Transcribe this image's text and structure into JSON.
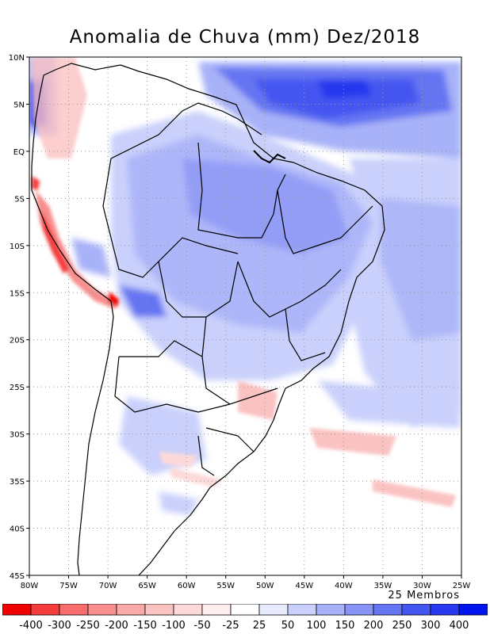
{
  "title": "Anomalia de Chuva (mm) Dez/2018",
  "members_note": "25 Membros",
  "map": {
    "lon_min": -80,
    "lon_max": -25,
    "lat_min": -45,
    "lat_max": 10,
    "lat_ticks": [
      {
        "value": 10,
        "label": "10N"
      },
      {
        "value": 5,
        "label": "5N"
      },
      {
        "value": 0,
        "label": "EQ"
      },
      {
        "value": -5,
        "label": "5S"
      },
      {
        "value": -10,
        "label": "10S"
      },
      {
        "value": -15,
        "label": "15S"
      },
      {
        "value": -20,
        "label": "20S"
      },
      {
        "value": -25,
        "label": "25S"
      },
      {
        "value": -30,
        "label": "30S"
      },
      {
        "value": -35,
        "label": "35S"
      },
      {
        "value": -40,
        "label": "40S"
      },
      {
        "value": -45,
        "label": "45S"
      }
    ],
    "lon_ticks": [
      {
        "value": -80,
        "label": "80W"
      },
      {
        "value": -75,
        "label": "75W"
      },
      {
        "value": -70,
        "label": "70W"
      },
      {
        "value": -65,
        "label": "65W"
      },
      {
        "value": -60,
        "label": "60W"
      },
      {
        "value": -55,
        "label": "55W"
      },
      {
        "value": -50,
        "label": "50W"
      },
      {
        "value": -45,
        "label": "45W"
      },
      {
        "value": -40,
        "label": "40W"
      },
      {
        "value": -35,
        "label": "35W"
      },
      {
        "value": -30,
        "label": "30W"
      },
      {
        "value": -25,
        "label": "25W"
      }
    ]
  },
  "colorbar": {
    "labels": [
      "-400",
      "-300",
      "-250",
      "-200",
      "-150",
      "-100",
      "-50",
      "-25",
      "25",
      "50",
      "100",
      "150",
      "200",
      "250",
      "300",
      "400"
    ],
    "colors": [
      "#f00000",
      "#f53c3c",
      "#f76c6c",
      "#f88e8e",
      "#faa8a8",
      "#fbc2c2",
      "#fdd9d9",
      "#feeeee",
      "#ffffff",
      "#e8ebfd",
      "#c9d0fb",
      "#a8b2f8",
      "#8793f5",
      "#6574f2",
      "#4456f0",
      "#2738ee",
      "#0014f0"
    ]
  }
}
